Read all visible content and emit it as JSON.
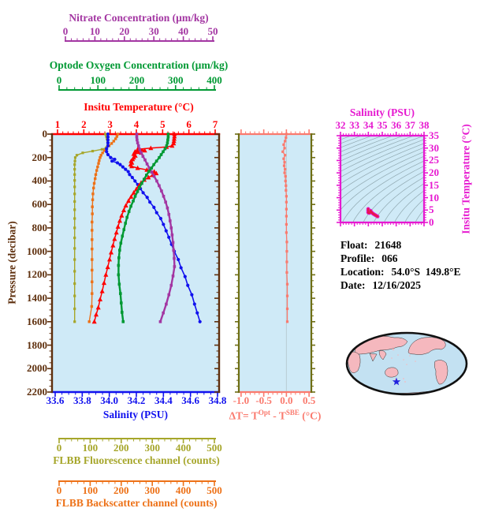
{
  "colors": {
    "nitrate": "#a336a2",
    "oxygen": "#009933",
    "temperature": "#ff0000",
    "pressure": "#5e2f0d",
    "salinity": "#1111ee",
    "deltaT": "#fa7a6e",
    "panel_frame": "#6e6e14",
    "magenta": "#e619d0",
    "fluorescence": "#a6a62a",
    "backscatter": "#ed7117",
    "plot_bg": "#cfeaf7",
    "contour": "#90a8b0",
    "map_ocean": "#c3e1f2",
    "map_land": "#f5b8be",
    "map_outline": "#111111",
    "star": "#2222dd",
    "info_text": "#000000",
    "zero_line": "#b9cdd4",
    "scatter_red": "#e8184a",
    "scatter_magenta": "#e619d0"
  },
  "axes": {
    "nitrate": {
      "title": "Nitrate Concentration (µm/kg)",
      "ticks": [
        "0",
        "10",
        "20",
        "30",
        "40",
        "50"
      ]
    },
    "oxygen": {
      "title": "Optode Oxygen Concentration (µm/kg)",
      "ticks": [
        "0",
        "100",
        "200",
        "300",
        "400"
      ]
    },
    "temperature": {
      "title": "Insitu Temperature (°C)",
      "ticks": [
        "1",
        "2",
        "3",
        "4",
        "5",
        "6",
        "7"
      ]
    },
    "pressure": {
      "title": "Pressure (decibar)",
      "ticks": [
        "0",
        "200",
        "400",
        "600",
        "800",
        "1000",
        "1200",
        "1400",
        "1600",
        "1800",
        "2000",
        "2200"
      ]
    },
    "salinity": {
      "title": "Salinity (PSU)",
      "ticks": [
        "33.6",
        "33.8",
        "34.0",
        "34.2",
        "34.4",
        "34.6",
        "34.8"
      ]
    },
    "deltaT": {
      "t1": "ΔT= T",
      "sup1": "Opt",
      "t2": " - T",
      "sup2": "SBE",
      "t3": " (°C)",
      "ticks": [
        "-1.0",
        "-0.5",
        "0.0",
        "0.5"
      ]
    },
    "ts": {
      "title": "Salinity (PSU)",
      "x_ticks": [
        "32",
        "33",
        "34",
        "35",
        "36",
        "37",
        "38"
      ],
      "y_title": "Insitu Temperature (°C)",
      "y_ticks": [
        "0",
        "5",
        "10",
        "15",
        "20",
        "25",
        "30",
        "35"
      ]
    },
    "fluorescence": {
      "title": "FLBB Fluorescence channel (counts)",
      "ticks": [
        "0",
        "100",
        "200",
        "300",
        "400",
        "500"
      ]
    },
    "backscatter": {
      "title": "FLBB Backscatter channel (counts)",
      "ticks": [
        "0",
        "100",
        "200",
        "300",
        "400",
        "500"
      ]
    }
  },
  "info": [
    {
      "label": "Float:",
      "value": "21648"
    },
    {
      "label": "Profile:",
      "value": "066"
    },
    {
      "label": "Location:",
      "value": "54.0°S  149.8°E"
    },
    {
      "label": "Date:",
      "value": "12/16/2025"
    }
  ],
  "chart_data": [
    {
      "type": "line",
      "title": "Float profile plot",
      "ylabel": "Pressure (decibar)",
      "ylim": [
        0,
        2200
      ],
      "y_inverted": true,
      "grid": false,
      "series": [
        {
          "name": "Insitu Temperature (°C)",
          "xlim": [
            1,
            7
          ],
          "marker": "triangle",
          "pressure": [
            0,
            20,
            40,
            60,
            80,
            100,
            110,
            120,
            130,
            140,
            150,
            160,
            170,
            185,
            200,
            215,
            230,
            245,
            260,
            275,
            290,
            305,
            320,
            335,
            350,
            370,
            390,
            415,
            440,
            470,
            500,
            535,
            570,
            610,
            650,
            695,
            740,
            790,
            840,
            895,
            950,
            1010,
            1070,
            1135,
            1200,
            1270,
            1340,
            1410,
            1480,
            1540,
            1600
          ],
          "values": [
            5.45,
            5.45,
            5.44,
            5.43,
            5.42,
            5.36,
            5.15,
            4.55,
            4.05,
            4.32,
            3.95,
            4.18,
            3.9,
            3.96,
            3.9,
            3.86,
            3.8,
            3.83,
            3.78,
            3.82,
            4.05,
            4.4,
            4.68,
            4.76,
            4.62,
            4.46,
            4.3,
            4.18,
            4.1,
            4.0,
            3.9,
            3.8,
            3.7,
            3.6,
            3.52,
            3.44,
            3.37,
            3.3,
            3.24,
            3.17,
            3.11,
            3.04,
            2.98,
            2.91,
            2.84,
            2.77,
            2.7,
            2.62,
            2.55,
            2.47,
            2.4
          ]
        },
        {
          "name": "Salinity (PSU)",
          "xlim": [
            33.6,
            34.8
          ],
          "marker": "circle",
          "pressure": [
            0,
            25,
            50,
            75,
            100,
            125,
            150,
            175,
            200,
            215,
            230,
            245,
            260,
            280,
            300,
            320,
            345,
            370,
            400,
            430,
            465,
            500,
            540,
            580,
            625,
            670,
            720,
            770,
            825,
            880,
            940,
            1000,
            1070,
            1140,
            1215,
            1290,
            1370,
            1450,
            1525,
            1600
          ],
          "values": [
            33.99,
            33.99,
            33.99,
            33.99,
            33.99,
            33.98,
            33.98,
            33.99,
            34.01,
            34.04,
            34.02,
            34.06,
            34.08,
            34.1,
            34.12,
            34.14,
            34.15,
            34.17,
            34.19,
            34.21,
            34.23,
            34.25,
            34.28,
            34.3,
            34.33,
            34.35,
            34.38,
            34.4,
            34.42,
            34.44,
            34.46,
            34.48,
            34.51,
            34.53,
            34.56,
            34.58,
            34.61,
            34.63,
            34.65,
            34.67
          ]
        },
        {
          "name": "Optode Oxygen Concentration (µm/kg)",
          "xlim": [
            0,
            400
          ],
          "marker": "square",
          "pressure": [
            0,
            25,
            50,
            75,
            100,
            125,
            150,
            175,
            200,
            230,
            260,
            290,
            320,
            350,
            385,
            420,
            455,
            490,
            530,
            570,
            615,
            660,
            710,
            760,
            815,
            870,
            930,
            990,
            1055,
            1120,
            1200,
            1280,
            1360,
            1440,
            1520,
            1600
          ],
          "values": [
            281,
            281,
            280,
            279,
            277,
            273,
            268,
            263,
            258,
            251,
            244,
            238,
            231,
            225,
            219,
            213,
            207,
            202,
            196,
            191,
            185,
            180,
            175,
            171,
            167,
            163,
            159,
            156,
            154,
            153,
            153,
            155,
            158,
            160,
            162,
            165
          ]
        },
        {
          "name": "Nitrate Concentration (µm/kg)",
          "xlim": [
            0,
            50
          ],
          "marker": "square",
          "pressure": [
            0,
            25,
            50,
            75,
            100,
            130,
            160,
            190,
            220,
            255,
            290,
            325,
            360,
            400,
            440,
            485,
            530,
            580,
            630,
            685,
            740,
            800,
            860,
            925,
            990,
            1060,
            1130,
            1210,
            1290,
            1370,
            1450,
            1525,
            1600
          ],
          "values": [
            24.2,
            24.2,
            24.3,
            24.5,
            24.8,
            25.2,
            25.7,
            26.3,
            27.0,
            27.7,
            28.5,
            29.3,
            30.1,
            31.0,
            31.8,
            32.6,
            33.3,
            34.0,
            34.6,
            35.1,
            35.5,
            35.9,
            36.2,
            36.5,
            36.7,
            36.9,
            37.0,
            36.5,
            35.9,
            35.1,
            34.2,
            33.2,
            32.2
          ]
        },
        {
          "name": "FLBB Fluorescence channel (counts)",
          "xlim": [
            0,
            500
          ],
          "marker": "square",
          "pressure": [
            0,
            20,
            40,
            60,
            80,
            100,
            115,
            130,
            145,
            160,
            180,
            200,
            230,
            260,
            300,
            345,
            395,
            450,
            510,
            575,
            645,
            720,
            800,
            885,
            975,
            1070,
            1170,
            1275,
            1380,
            1490,
            1600
          ],
          "values": [
            149,
            152,
            154,
            156,
            157,
            156,
            152,
            138,
            108,
            76,
            57,
            52,
            51,
            50,
            50,
            50,
            50,
            50,
            50,
            50,
            50,
            50,
            50,
            50,
            50,
            50,
            50,
            50,
            50,
            50,
            50
          ]
        },
        {
          "name": "FLBB Backscatter channel (counts)",
          "xlim": [
            0,
            500
          ],
          "marker": "square",
          "pressure": [
            0,
            20,
            40,
            60,
            80,
            100,
            120,
            140,
            160,
            180,
            200,
            225,
            250,
            280,
            310,
            345,
            380,
            420,
            460,
            510,
            560,
            620,
            680,
            750,
            820,
            900,
            980,
            1070,
            1160,
            1260,
            1360,
            1470,
            1600
          ],
          "values": [
            189,
            186,
            182,
            176,
            169,
            161,
            153,
            146,
            140,
            135,
            132,
            129,
            127,
            124,
            121,
            118,
            116,
            113,
            111,
            109,
            108,
            107,
            107,
            106,
            106,
            106,
            106,
            106,
            106,
            106,
            106,
            105,
            97
          ]
        }
      ]
    },
    {
      "type": "line",
      "title": "ΔT= TOpt - TSBE (°C)",
      "xlim": [
        -1.05,
        0.55
      ],
      "ylim": [
        0,
        2200
      ],
      "y_inverted": true,
      "pressure": [
        0,
        30,
        60,
        90,
        120,
        150,
        180,
        210,
        240,
        270,
        300,
        330,
        360,
        400,
        440,
        480,
        530,
        580,
        640,
        700,
        770,
        840,
        920,
        1000,
        1090,
        1180,
        1280,
        1380,
        1490,
        1600
      ],
      "values": [
        0.0,
        -0.01,
        -0.03,
        -0.06,
        -0.04,
        -0.08,
        -0.03,
        -0.06,
        -0.04,
        -0.05,
        -0.03,
        -0.04,
        -0.02,
        -0.02,
        -0.01,
        -0.01,
        0.0,
        0.0,
        0.0,
        0.0,
        0.0,
        0.0,
        0.01,
        0.01,
        0.01,
        0.01,
        0.02,
        0.02,
        0.02,
        0.02
      ]
    },
    {
      "type": "scatter",
      "title": "T-S diagram",
      "xlabel": "Salinity (PSU)",
      "ylabel": "Insitu Temperature (°C)",
      "xlim": [
        32,
        38
      ],
      "ylim": [
        0,
        35
      ],
      "contours": "potential density isopycnals",
      "points": [
        [
          33.99,
          5.45
        ],
        [
          33.99,
          5.43
        ],
        [
          33.99,
          5.38
        ],
        [
          33.98,
          4.8
        ],
        [
          33.98,
          4.1
        ],
        [
          34.0,
          3.95
        ],
        [
          34.02,
          3.9
        ],
        [
          34.05,
          3.85
        ],
        [
          34.08,
          3.82
        ],
        [
          34.11,
          3.95
        ],
        [
          34.13,
          4.3
        ],
        [
          34.15,
          4.65
        ],
        [
          34.16,
          4.75
        ],
        [
          34.18,
          4.5
        ],
        [
          34.2,
          4.3
        ],
        [
          34.23,
          4.1
        ],
        [
          34.26,
          3.95
        ],
        [
          34.29,
          3.78
        ],
        [
          34.32,
          3.62
        ],
        [
          34.35,
          3.5
        ],
        [
          34.38,
          3.4
        ],
        [
          34.41,
          3.28
        ],
        [
          34.44,
          3.17
        ],
        [
          34.47,
          3.06
        ],
        [
          34.5,
          2.96
        ],
        [
          34.54,
          2.84
        ],
        [
          34.58,
          2.72
        ],
        [
          34.61,
          2.6
        ],
        [
          34.64,
          2.5
        ],
        [
          34.67,
          2.4
        ]
      ]
    }
  ],
  "map": {
    "description": "world map, Pacific centered",
    "marker": "star at float location"
  }
}
